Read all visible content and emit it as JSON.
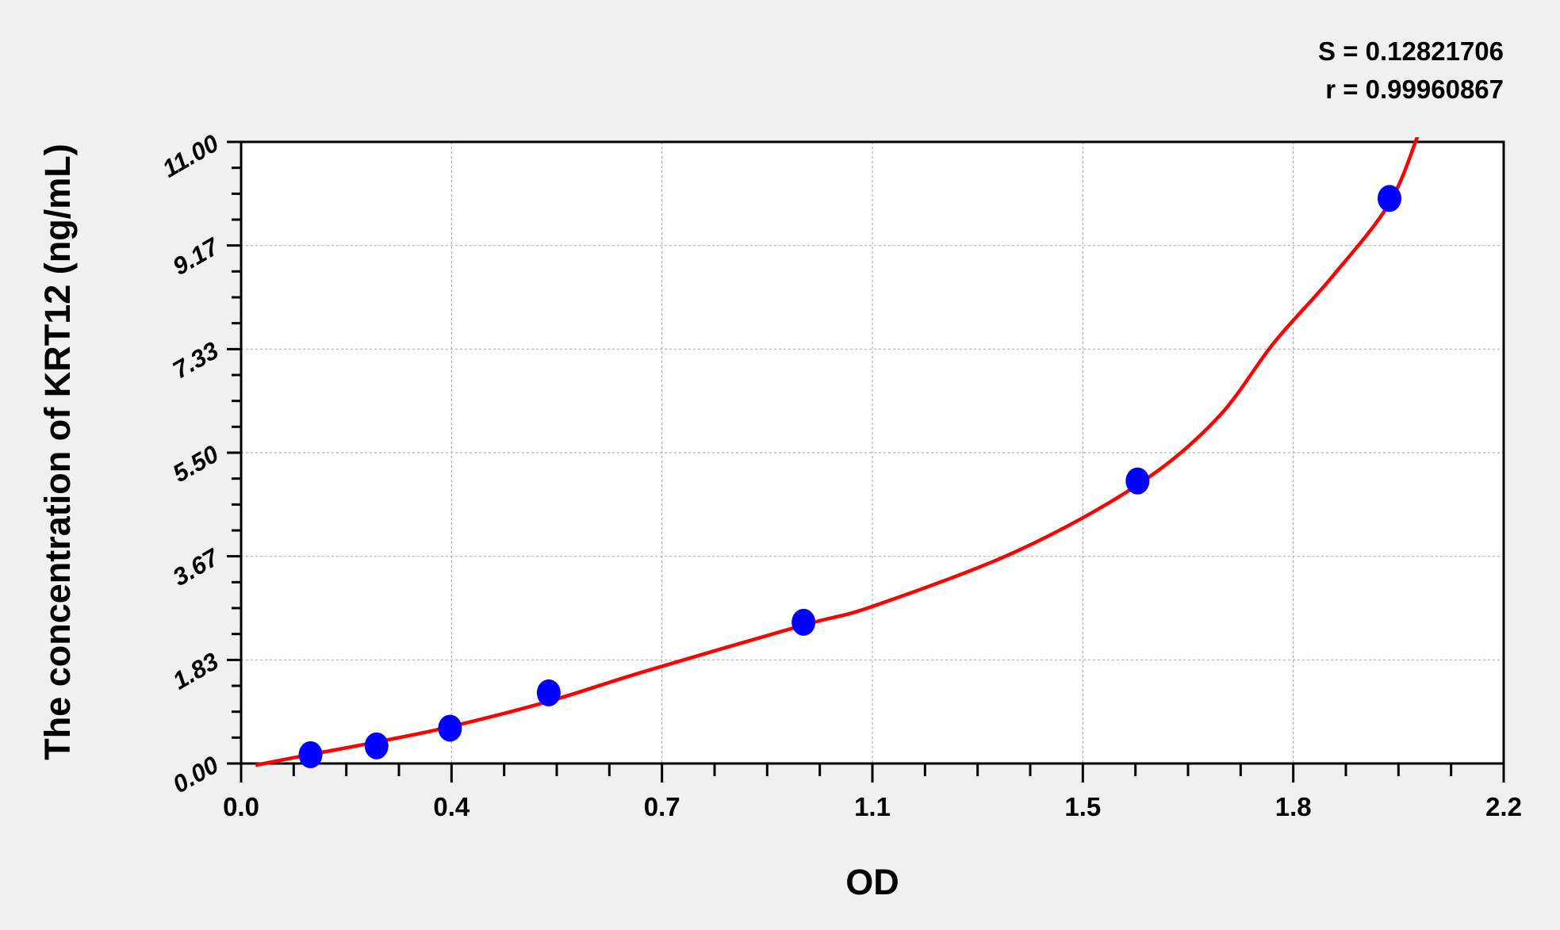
{
  "chart_data": {
    "type": "scatter",
    "title": "",
    "xlabel": "OD",
    "ylabel": "The concentration of KRT12 (ng/mL)",
    "xlim": [
      0.0,
      2.2
    ],
    "ylim": [
      0.0,
      11.0
    ],
    "x_tick_labels": [
      "0.0",
      "0.4",
      "0.7",
      "1.1",
      "1.5",
      "1.8",
      "2.2"
    ],
    "y_tick_labels": [
      "0.00",
      "1.83",
      "3.67",
      "5.50",
      "7.33",
      "9.17",
      "11.00"
    ],
    "grid": true,
    "annotations": [
      "S = 0.12821706",
      "r = 0.99960867"
    ],
    "points": {
      "color": "#0000ff",
      "x": [
        0.121,
        0.236,
        0.364,
        0.536,
        0.98,
        1.562,
        2.001
      ],
      "y": [
        0.156,
        0.312,
        0.625,
        1.25,
        2.5,
        5.0,
        10.0
      ]
    },
    "fit_curve": {
      "color": "#ff0000",
      "x": [
        0.025,
        0.121,
        0.236,
        0.364,
        0.536,
        0.7,
        0.98,
        1.1,
        1.35,
        1.562,
        1.7,
        1.8,
        1.9,
        2.0,
        2.05
      ],
      "y": [
        -0.03,
        0.16,
        0.38,
        0.65,
        1.1,
        1.62,
        2.45,
        2.78,
        3.75,
        4.93,
        6.1,
        7.45,
        8.6,
        9.9,
        11.1
      ]
    }
  }
}
